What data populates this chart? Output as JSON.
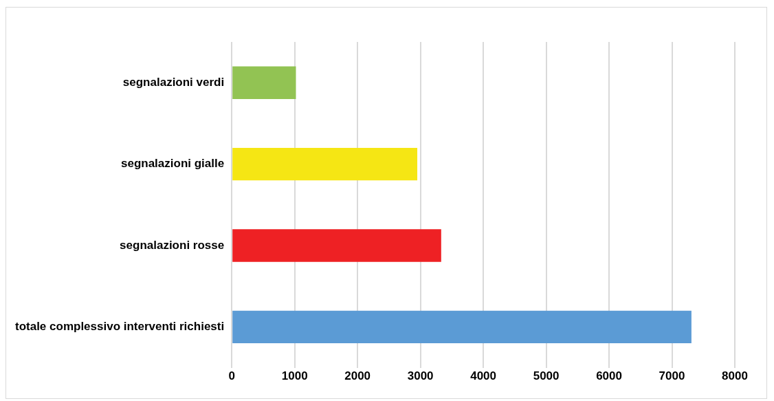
{
  "chart_data": {
    "type": "bar",
    "orientation": "horizontal",
    "categories": [
      "segnalazioni verdi",
      "segnalazioni gialle",
      "segnalazioni rosse",
      "totale complessivo interventi richiesti"
    ],
    "values": [
      1020,
      2950,
      3330,
      7310
    ],
    "colors": [
      "#92c353",
      "#f5e614",
      "#ee2124",
      "#5b9bd5"
    ],
    "xlim": [
      0,
      8000
    ],
    "xticks": [
      0,
      1000,
      2000,
      3000,
      4000,
      5000,
      6000,
      7000,
      8000
    ],
    "grid": "x",
    "legend": false
  }
}
